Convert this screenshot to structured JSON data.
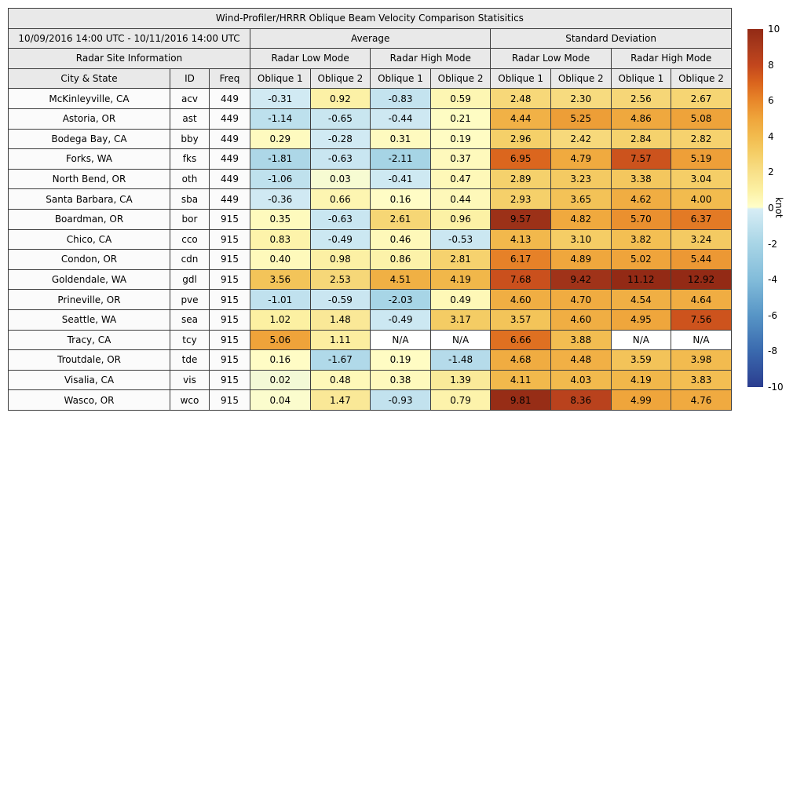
{
  "chart_data": {
    "type": "heatmap",
    "title": "Wind-Profiler/HRRR Oblique Beam Velocity Comparison Statisitics",
    "period": "10/09/2016 14:00 UTC - 10/11/2016 14:00 UTC",
    "group_headers": {
      "average": "Average",
      "std": "Standard Deviation"
    },
    "site_info_header": "Radar Site Information",
    "mode_headers": [
      "Radar Low Mode",
      "Radar High Mode",
      "Radar Low Mode",
      "Radar High Mode"
    ],
    "columns": [
      "City & State",
      "ID",
      "Freq",
      "Oblique 1",
      "Oblique 2",
      "Oblique 1",
      "Oblique 2",
      "Oblique 1",
      "Oblique 2",
      "Oblique 1",
      "Oblique 2"
    ],
    "na_label": "N/A",
    "rows": [
      {
        "city": "McKinleyville, CA",
        "id": "acv",
        "freq": "449",
        "values": [
          -0.31,
          0.92,
          -0.83,
          0.59,
          2.48,
          2.3,
          2.56,
          2.67
        ]
      },
      {
        "city": "Astoria, OR",
        "id": "ast",
        "freq": "449",
        "values": [
          -1.14,
          -0.65,
          -0.44,
          0.21,
          4.44,
          5.25,
          4.86,
          5.08
        ]
      },
      {
        "city": "Bodega Bay, CA",
        "id": "bby",
        "freq": "449",
        "values": [
          0.29,
          -0.28,
          0.31,
          0.19,
          2.96,
          2.42,
          2.84,
          2.82
        ]
      },
      {
        "city": "Forks, WA",
        "id": "fks",
        "freq": "449",
        "values": [
          -1.81,
          -0.63,
          -2.11,
          0.37,
          6.95,
          4.79,
          7.57,
          5.19
        ]
      },
      {
        "city": "North Bend, OR",
        "id": "oth",
        "freq": "449",
        "values": [
          -1.06,
          0.03,
          -0.41,
          0.47,
          2.89,
          3.23,
          3.38,
          3.04
        ]
      },
      {
        "city": "Santa Barbara, CA",
        "id": "sba",
        "freq": "449",
        "values": [
          -0.36,
          0.66,
          0.16,
          0.44,
          2.93,
          3.65,
          4.62,
          4.0
        ]
      },
      {
        "city": "Boardman, OR",
        "id": "bor",
        "freq": "915",
        "values": [
          0.35,
          -0.63,
          2.61,
          0.96,
          9.57,
          4.82,
          5.7,
          6.37
        ]
      },
      {
        "city": "Chico, CA",
        "id": "cco",
        "freq": "915",
        "values": [
          0.83,
          -0.49,
          0.46,
          -0.53,
          4.13,
          3.1,
          3.82,
          3.24
        ]
      },
      {
        "city": "Condon, OR",
        "id": "cdn",
        "freq": "915",
        "values": [
          0.4,
          0.98,
          0.86,
          2.81,
          6.17,
          4.89,
          5.02,
          5.44
        ]
      },
      {
        "city": "Goldendale, WA",
        "id": "gdl",
        "freq": "915",
        "values": [
          3.56,
          2.53,
          4.51,
          4.19,
          7.68,
          9.42,
          11.12,
          12.92
        ]
      },
      {
        "city": "Prineville, OR",
        "id": "pve",
        "freq": "915",
        "values": [
          -1.01,
          -0.59,
          -2.03,
          0.49,
          4.6,
          4.7,
          4.54,
          4.64
        ]
      },
      {
        "city": "Seattle, WA",
        "id": "sea",
        "freq": "915",
        "values": [
          1.02,
          1.48,
          -0.49,
          3.17,
          3.57,
          4.6,
          4.95,
          7.56
        ]
      },
      {
        "city": "Tracy, CA",
        "id": "tcy",
        "freq": "915",
        "values": [
          5.06,
          1.11,
          null,
          null,
          6.66,
          3.88,
          null,
          null
        ]
      },
      {
        "city": "Troutdale, OR",
        "id": "tde",
        "freq": "915",
        "values": [
          0.16,
          -1.67,
          0.19,
          -1.48,
          4.68,
          4.48,
          3.59,
          3.98
        ]
      },
      {
        "city": "Visalia, CA",
        "id": "vis",
        "freq": "915",
        "values": [
          0.02,
          0.48,
          0.38,
          1.39,
          4.11,
          4.03,
          4.19,
          3.83
        ]
      },
      {
        "city": "Wasco, OR",
        "id": "wco",
        "freq": "915",
        "values": [
          0.04,
          1.47,
          -0.93,
          0.79,
          9.81,
          8.36,
          4.99,
          4.76
        ]
      }
    ],
    "colorbar": {
      "label": "knot",
      "min": -10,
      "max": 10,
      "ticks": [
        10,
        8,
        6,
        4,
        2,
        0,
        -2,
        -4,
        -6,
        -8,
        -10
      ],
      "na_color": "#ffffff",
      "colormap_stops": [
        [
          -10,
          "#2b3d8f"
        ],
        [
          -8,
          "#3a69ae"
        ],
        [
          -6,
          "#5795c6"
        ],
        [
          -4,
          "#82bcda"
        ],
        [
          -2,
          "#a8d5e6"
        ],
        [
          -0.05,
          "#d7edf5"
        ],
        [
          0.05,
          "#fffec9"
        ],
        [
          1,
          "#fcf0a3"
        ],
        [
          2,
          "#f8e089"
        ],
        [
          3,
          "#f5cf68"
        ],
        [
          4,
          "#f2bb4e"
        ],
        [
          5,
          "#efa53b"
        ],
        [
          6,
          "#e8872a"
        ],
        [
          7,
          "#da641d"
        ],
        [
          8,
          "#c2461d"
        ],
        [
          9,
          "#a93a1c"
        ],
        [
          10,
          "#932a15"
        ]
      ]
    }
  }
}
